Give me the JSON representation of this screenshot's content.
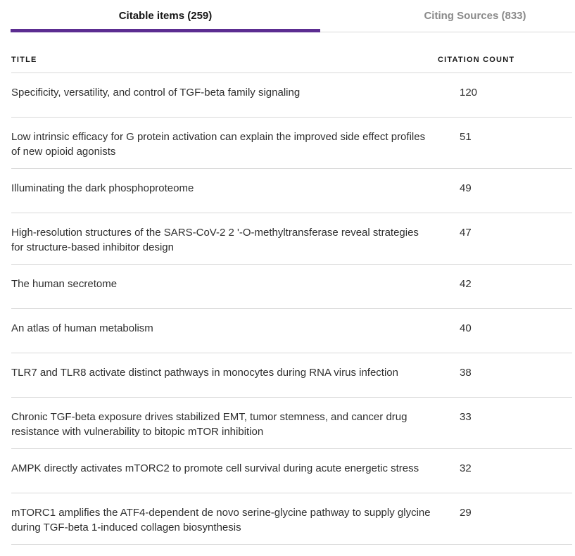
{
  "tabs": [
    {
      "label": "Citable items (259)",
      "active": true
    },
    {
      "label": "Citing Sources (833)",
      "active": false
    }
  ],
  "table": {
    "columns": {
      "title": "TITLE",
      "count": "CITATION COUNT"
    },
    "rows": [
      {
        "title": "Specificity, versatility, and control of TGF-beta family signaling",
        "count": "120"
      },
      {
        "title": "Low intrinsic efficacy for G protein activation can explain the improved side effect profiles of new opioid agonists",
        "count": "51"
      },
      {
        "title": "Illuminating the dark phosphoproteome",
        "count": "49"
      },
      {
        "title": "High-resolution structures of the SARS-CoV-2 2 '-O-methyltransferase reveal strategies for structure-based inhibitor design",
        "count": "47"
      },
      {
        "title": "The human secretome",
        "count": "42"
      },
      {
        "title": "An atlas of human metabolism",
        "count": "40"
      },
      {
        "title": "TLR7 and TLR8 activate distinct pathways in monocytes during RNA virus infection",
        "count": "38"
      },
      {
        "title": "Chronic TGF-beta exposure drives stabilized EMT, tumor stemness, and cancer drug resistance with vulnerability to bitopic mTOR inhibition",
        "count": "33"
      },
      {
        "title": "AMPK directly activates mTORC2 to promote cell survival during acute energetic stress",
        "count": "32"
      },
      {
        "title": "mTORC1 amplifies the ATF4-dependent de novo serine-glycine pathway to supply glycine during TGF-beta 1-induced collagen biosynthesis",
        "count": "29"
      }
    ]
  },
  "colors": {
    "accent": "#5c2d91",
    "divider": "#d9d9d9",
    "text": "#2f2f2f",
    "muted": "#8a8a8a",
    "header_text": "#161616",
    "background": "#ffffff"
  }
}
